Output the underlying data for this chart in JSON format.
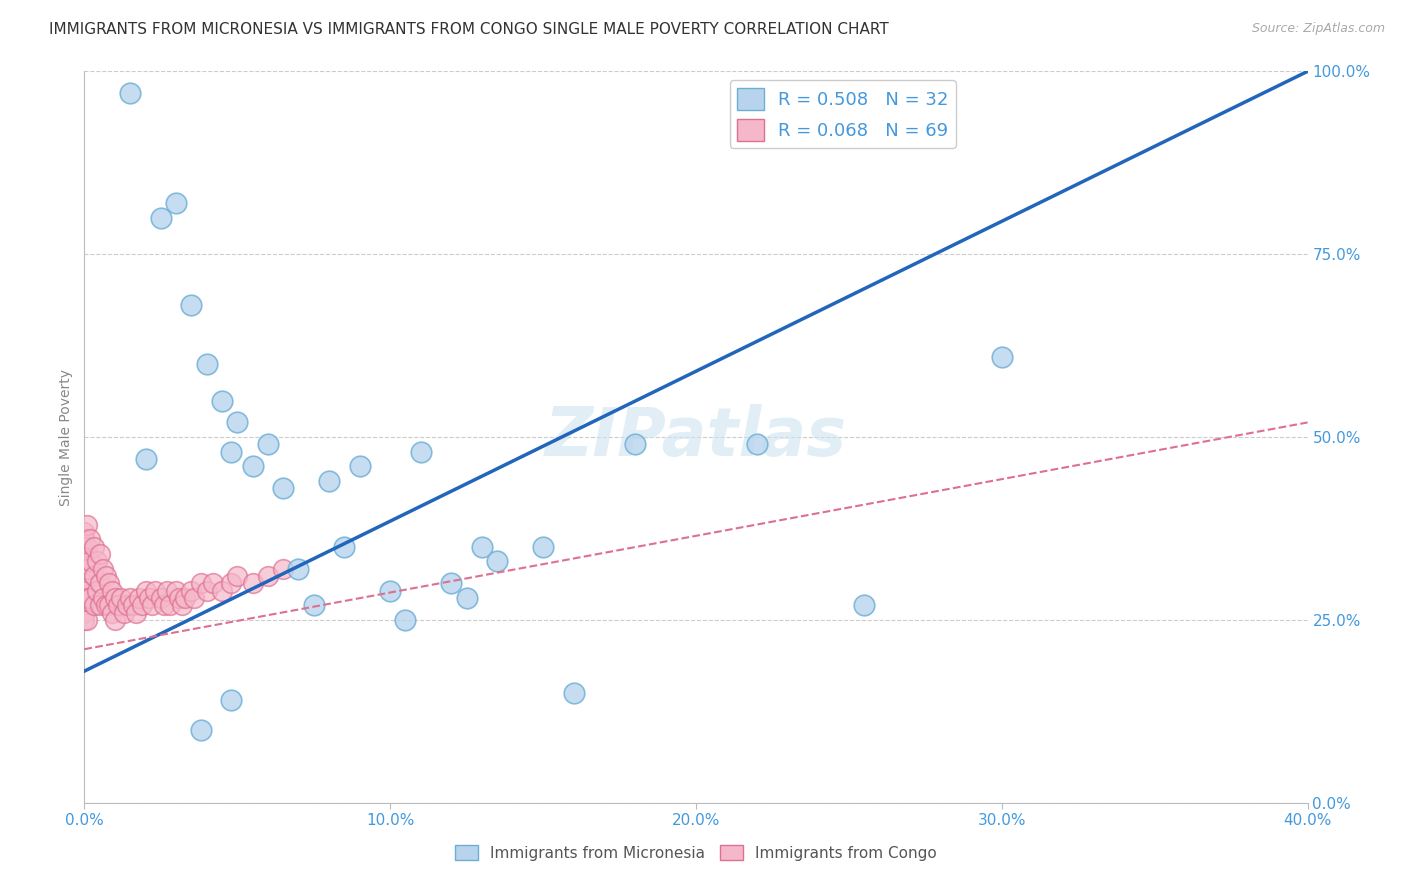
{
  "title": "IMMIGRANTS FROM MICRONESIA VS IMMIGRANTS FROM CONGO SINGLE MALE POVERTY CORRELATION CHART",
  "source": "Source: ZipAtlas.com",
  "ylabel_label": "Single Male Poverty",
  "watermark": "ZIPatlas",
  "xlim": [
    0,
    0.4
  ],
  "ylim": [
    0,
    1.0
  ],
  "xticks": [
    0.0,
    0.1,
    0.2,
    0.3,
    0.4
  ],
  "xtick_labels": [
    "0.0%",
    "10.0%",
    "20.0%",
    "30.0%",
    "40.0%"
  ],
  "yticks": [
    0.0,
    0.25,
    0.5,
    0.75,
    1.0
  ],
  "ytick_labels": [
    "0.0%",
    "25.0%",
    "50.0%",
    "75.0%",
    "100.0%"
  ],
  "micronesia_color": "#b8d4ed",
  "congo_color": "#f5b8cb",
  "micronesia_edge": "#6baed6",
  "congo_edge": "#e07090",
  "trend_micronesia_color": "#2266bb",
  "trend_congo_color": "#dd7090",
  "R_micronesia": 0.508,
  "N_micronesia": 32,
  "R_congo": 0.068,
  "N_congo": 69,
  "micronesia_x": [
    0.015,
    0.025,
    0.03,
    0.035,
    0.04,
    0.045,
    0.048,
    0.05,
    0.055,
    0.06,
    0.065,
    0.07,
    0.075,
    0.08,
    0.085,
    0.09,
    0.1,
    0.105,
    0.11,
    0.12,
    0.125,
    0.13,
    0.135,
    0.15,
    0.16,
    0.18,
    0.22,
    0.255,
    0.3,
    0.02,
    0.038,
    0.048
  ],
  "micronesia_y": [
    0.97,
    0.8,
    0.82,
    0.68,
    0.6,
    0.55,
    0.48,
    0.52,
    0.46,
    0.49,
    0.43,
    0.32,
    0.27,
    0.44,
    0.35,
    0.46,
    0.29,
    0.25,
    0.48,
    0.3,
    0.28,
    0.35,
    0.33,
    0.35,
    0.15,
    0.49,
    0.49,
    0.27,
    0.61,
    0.47,
    0.1,
    0.14
  ],
  "congo_x": [
    0.0,
    0.0,
    0.0,
    0.0,
    0.0,
    0.0,
    0.0,
    0.0,
    0.0,
    0.0,
    0.0,
    0.001,
    0.001,
    0.001,
    0.001,
    0.001,
    0.002,
    0.002,
    0.002,
    0.003,
    0.003,
    0.003,
    0.004,
    0.004,
    0.005,
    0.005,
    0.005,
    0.006,
    0.006,
    0.007,
    0.007,
    0.008,
    0.008,
    0.009,
    0.009,
    0.01,
    0.01,
    0.011,
    0.012,
    0.013,
    0.014,
    0.015,
    0.016,
    0.017,
    0.018,
    0.019,
    0.02,
    0.021,
    0.022,
    0.023,
    0.025,
    0.026,
    0.027,
    0.028,
    0.03,
    0.031,
    0.032,
    0.033,
    0.035,
    0.036,
    0.038,
    0.04,
    0.042,
    0.045,
    0.048,
    0.05,
    0.055,
    0.06,
    0.065
  ],
  "congo_y": [
    0.37,
    0.36,
    0.34,
    0.33,
    0.32,
    0.31,
    0.3,
    0.29,
    0.27,
    0.26,
    0.25,
    0.38,
    0.35,
    0.32,
    0.28,
    0.25,
    0.36,
    0.33,
    0.28,
    0.35,
    0.31,
    0.27,
    0.33,
    0.29,
    0.34,
    0.3,
    0.27,
    0.32,
    0.28,
    0.31,
    0.27,
    0.3,
    0.27,
    0.29,
    0.26,
    0.28,
    0.25,
    0.27,
    0.28,
    0.26,
    0.27,
    0.28,
    0.27,
    0.26,
    0.28,
    0.27,
    0.29,
    0.28,
    0.27,
    0.29,
    0.28,
    0.27,
    0.29,
    0.27,
    0.29,
    0.28,
    0.27,
    0.28,
    0.29,
    0.28,
    0.3,
    0.29,
    0.3,
    0.29,
    0.3,
    0.31,
    0.3,
    0.31,
    0.32
  ],
  "background_color": "#ffffff",
  "grid_color": "#cccccc",
  "axis_color": "#4499dd",
  "legend_item1": "Immigrants from Micronesia",
  "legend_item2": "Immigrants from Congo",
  "legend_fontsize": 11,
  "title_fontsize": 11,
  "watermark_fontsize": 48,
  "watermark_color": "#d0e4f0",
  "watermark_alpha": 0.6
}
